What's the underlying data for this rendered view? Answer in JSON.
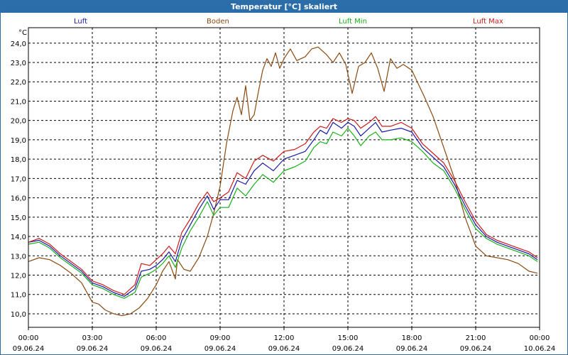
{
  "window": {
    "title": "Temperatur [°C] skaliert"
  },
  "chart_data": {
    "type": "line",
    "title": "Temperatur [°C] skaliert",
    "ylabel": "°C",
    "ylim": [
      9.3,
      24.8
    ],
    "yticks": [
      "10,0",
      "11,0",
      "12,0",
      "13,0",
      "14,0",
      "15,0",
      "16,0",
      "17,0",
      "18,0",
      "19,0",
      "20,0",
      "21,0",
      "22,0",
      "23,0",
      "24,0"
    ],
    "xlim": [
      0,
      24
    ],
    "xticks": [
      {
        "time": "00:00",
        "date": "09.06.24"
      },
      {
        "time": "03:00",
        "date": "09.06.24"
      },
      {
        "time": "06:00",
        "date": "09.06.24"
      },
      {
        "time": "09:00",
        "date": "09.06.24"
      },
      {
        "time": "12:00",
        "date": "09.06.24"
      },
      {
        "time": "15:00",
        "date": "09.06.24"
      },
      {
        "time": "18:00",
        "date": "09.06.24"
      },
      {
        "time": "21:00",
        "date": "09.06.24"
      },
      {
        "time": "00:00",
        "date": "10.06.24"
      }
    ],
    "grid": true,
    "series": [
      {
        "name": "Luft",
        "color": "#1a1aa8",
        "points": [
          [
            0,
            13.7
          ],
          [
            0.5,
            13.8
          ],
          [
            1,
            13.5
          ],
          [
            1.5,
            13.0
          ],
          [
            2,
            12.6
          ],
          [
            2.5,
            12.2
          ],
          [
            3,
            11.6
          ],
          [
            3.5,
            11.4
          ],
          [
            4,
            11.1
          ],
          [
            4.5,
            10.9
          ],
          [
            5,
            11.3
          ],
          [
            5.3,
            12.2
          ],
          [
            5.7,
            12.3
          ],
          [
            6,
            12.5
          ],
          [
            6.3,
            12.8
          ],
          [
            6.6,
            13.2
          ],
          [
            6.9,
            12.7
          ],
          [
            7.2,
            13.8
          ],
          [
            7.6,
            14.6
          ],
          [
            8,
            15.4
          ],
          [
            8.4,
            16.1
          ],
          [
            8.7,
            15.4
          ],
          [
            9,
            15.9
          ],
          [
            9.4,
            15.9
          ],
          [
            9.8,
            16.9
          ],
          [
            10.2,
            16.7
          ],
          [
            10.6,
            17.4
          ],
          [
            11,
            17.8
          ],
          [
            11.5,
            17.4
          ],
          [
            12,
            18.0
          ],
          [
            12.5,
            18.2
          ],
          [
            13,
            18.4
          ],
          [
            13.4,
            19.0
          ],
          [
            13.7,
            19.5
          ],
          [
            14,
            19.3
          ],
          [
            14.3,
            19.9
          ],
          [
            14.7,
            19.6
          ],
          [
            15,
            19.9
          ],
          [
            15.3,
            19.7
          ],
          [
            15.6,
            19.2
          ],
          [
            16,
            19.6
          ],
          [
            16.3,
            19.9
          ],
          [
            16.6,
            19.4
          ],
          [
            17,
            19.5
          ],
          [
            17.5,
            19.6
          ],
          [
            18,
            19.4
          ],
          [
            18.5,
            18.6
          ],
          [
            19,
            18.1
          ],
          [
            19.5,
            17.6
          ],
          [
            20,
            16.7
          ],
          [
            20.5,
            15.6
          ],
          [
            21,
            14.6
          ],
          [
            21.5,
            14.0
          ],
          [
            22,
            13.7
          ],
          [
            22.5,
            13.5
          ],
          [
            23,
            13.3
          ],
          [
            23.5,
            13.1
          ],
          [
            23.9,
            12.8
          ]
        ]
      },
      {
        "name": "Boden",
        "color": "#8a4a10",
        "points": [
          [
            0,
            12.7
          ],
          [
            0.5,
            12.9
          ],
          [
            1,
            12.8
          ],
          [
            1.5,
            12.5
          ],
          [
            2,
            12.1
          ],
          [
            2.5,
            11.6
          ],
          [
            3,
            10.6
          ],
          [
            3.3,
            10.5
          ],
          [
            3.6,
            10.2
          ],
          [
            4,
            10.0
          ],
          [
            4.4,
            9.9
          ],
          [
            4.8,
            10.0
          ],
          [
            5.2,
            10.3
          ],
          [
            5.6,
            10.8
          ],
          [
            6,
            11.5
          ],
          [
            6.3,
            12.2
          ],
          [
            6.6,
            12.7
          ],
          [
            6.9,
            11.8
          ],
          [
            7,
            12.8
          ],
          [
            7.3,
            12.3
          ],
          [
            7.6,
            12.2
          ],
          [
            8,
            12.9
          ],
          [
            8.4,
            14.0
          ],
          [
            8.7,
            15.2
          ],
          [
            9,
            16.6
          ],
          [
            9.3,
            18.8
          ],
          [
            9.6,
            20.5
          ],
          [
            9.8,
            21.2
          ],
          [
            10,
            20.3
          ],
          [
            10.2,
            21.8
          ],
          [
            10.4,
            20.0
          ],
          [
            10.6,
            20.3
          ],
          [
            10.8,
            21.5
          ],
          [
            11,
            22.6
          ],
          [
            11.2,
            23.2
          ],
          [
            11.4,
            22.8
          ],
          [
            11.6,
            23.5
          ],
          [
            11.8,
            22.7
          ],
          [
            12,
            23.2
          ],
          [
            12.3,
            23.7
          ],
          [
            12.6,
            23.1
          ],
          [
            13,
            23.3
          ],
          [
            13.3,
            23.7
          ],
          [
            13.6,
            23.8
          ],
          [
            14,
            23.4
          ],
          [
            14.3,
            23.0
          ],
          [
            14.6,
            23.5
          ],
          [
            14.9,
            22.9
          ],
          [
            15.2,
            21.4
          ],
          [
            15.5,
            22.8
          ],
          [
            15.8,
            23.0
          ],
          [
            16.1,
            23.5
          ],
          [
            16.4,
            22.7
          ],
          [
            16.7,
            21.5
          ],
          [
            17,
            23.2
          ],
          [
            17.3,
            22.7
          ],
          [
            17.6,
            22.9
          ],
          [
            18,
            22.6
          ],
          [
            18.3,
            21.9
          ],
          [
            18.6,
            21.2
          ],
          [
            19,
            20.2
          ],
          [
            19.5,
            18.6
          ],
          [
            20,
            17.0
          ],
          [
            20.5,
            15.0
          ],
          [
            21,
            13.5
          ],
          [
            21.5,
            13.0
          ],
          [
            22,
            12.9
          ],
          [
            22.5,
            12.8
          ],
          [
            23,
            12.6
          ],
          [
            23.5,
            12.2
          ],
          [
            23.9,
            12.1
          ]
        ]
      },
      {
        "name": "Luft Min",
        "color": "#18b018",
        "points": [
          [
            0,
            13.6
          ],
          [
            0.5,
            13.7
          ],
          [
            1,
            13.4
          ],
          [
            1.5,
            12.9
          ],
          [
            2,
            12.5
          ],
          [
            2.5,
            12.1
          ],
          [
            3,
            11.5
          ],
          [
            3.5,
            11.3
          ],
          [
            4,
            11.0
          ],
          [
            4.5,
            10.8
          ],
          [
            5,
            11.1
          ],
          [
            5.3,
            11.9
          ],
          [
            5.7,
            12.1
          ],
          [
            6,
            12.3
          ],
          [
            6.3,
            12.6
          ],
          [
            6.6,
            13.0
          ],
          [
            6.9,
            12.4
          ],
          [
            7.2,
            13.4
          ],
          [
            7.6,
            14.3
          ],
          [
            8,
            15.0
          ],
          [
            8.4,
            15.8
          ],
          [
            8.7,
            15.1
          ],
          [
            9,
            15.5
          ],
          [
            9.4,
            15.5
          ],
          [
            9.8,
            16.5
          ],
          [
            10.2,
            16.1
          ],
          [
            10.6,
            16.7
          ],
          [
            11,
            17.2
          ],
          [
            11.5,
            16.8
          ],
          [
            12,
            17.4
          ],
          [
            12.5,
            17.6
          ],
          [
            13,
            17.9
          ],
          [
            13.4,
            18.6
          ],
          [
            13.7,
            18.9
          ],
          [
            14,
            18.8
          ],
          [
            14.3,
            19.4
          ],
          [
            14.7,
            19.2
          ],
          [
            15,
            19.6
          ],
          [
            15.3,
            19.2
          ],
          [
            15.6,
            18.7
          ],
          [
            16,
            19.2
          ],
          [
            16.3,
            19.4
          ],
          [
            16.6,
            19.0
          ],
          [
            17,
            19.0
          ],
          [
            17.5,
            19.1
          ],
          [
            18,
            18.9
          ],
          [
            18.5,
            18.4
          ],
          [
            19,
            17.8
          ],
          [
            19.5,
            17.4
          ],
          [
            20,
            16.5
          ],
          [
            20.5,
            15.4
          ],
          [
            21,
            14.4
          ],
          [
            21.5,
            13.9
          ],
          [
            22,
            13.6
          ],
          [
            22.5,
            13.4
          ],
          [
            23,
            13.2
          ],
          [
            23.5,
            13.0
          ],
          [
            23.9,
            12.7
          ]
        ]
      },
      {
        "name": "Luft Max",
        "color": "#cc1a1a",
        "points": [
          [
            0,
            13.7
          ],
          [
            0.5,
            13.9
          ],
          [
            1,
            13.6
          ],
          [
            1.5,
            13.1
          ],
          [
            2,
            12.7
          ],
          [
            2.5,
            12.3
          ],
          [
            3,
            11.7
          ],
          [
            3.5,
            11.5
          ],
          [
            4,
            11.2
          ],
          [
            4.5,
            11.0
          ],
          [
            5,
            11.5
          ],
          [
            5.3,
            12.6
          ],
          [
            5.7,
            12.5
          ],
          [
            6,
            12.8
          ],
          [
            6.3,
            13.1
          ],
          [
            6.6,
            13.5
          ],
          [
            6.9,
            13.1
          ],
          [
            7.2,
            14.2
          ],
          [
            7.6,
            14.9
          ],
          [
            8,
            15.7
          ],
          [
            8.4,
            16.3
          ],
          [
            8.7,
            15.8
          ],
          [
            9,
            16.0
          ],
          [
            9.4,
            16.3
          ],
          [
            9.8,
            17.3
          ],
          [
            10.2,
            17.0
          ],
          [
            10.6,
            17.9
          ],
          [
            11,
            18.2
          ],
          [
            11.5,
            17.9
          ],
          [
            12,
            18.4
          ],
          [
            12.5,
            18.5
          ],
          [
            13,
            18.8
          ],
          [
            13.4,
            19.4
          ],
          [
            13.7,
            19.7
          ],
          [
            14,
            19.6
          ],
          [
            14.3,
            20.1
          ],
          [
            14.7,
            19.9
          ],
          [
            15,
            20.1
          ],
          [
            15.3,
            20.0
          ],
          [
            15.6,
            19.6
          ],
          [
            16,
            19.9
          ],
          [
            16.3,
            20.2
          ],
          [
            16.6,
            19.7
          ],
          [
            17,
            19.7
          ],
          [
            17.5,
            19.9
          ],
          [
            18,
            19.6
          ],
          [
            18.5,
            18.8
          ],
          [
            19,
            18.3
          ],
          [
            19.5,
            17.8
          ],
          [
            20,
            16.9
          ],
          [
            20.5,
            15.8
          ],
          [
            21,
            14.8
          ],
          [
            21.5,
            14.1
          ],
          [
            22,
            13.8
          ],
          [
            22.5,
            13.6
          ],
          [
            23,
            13.4
          ],
          [
            23.5,
            13.2
          ],
          [
            23.9,
            12.9
          ]
        ]
      }
    ]
  }
}
